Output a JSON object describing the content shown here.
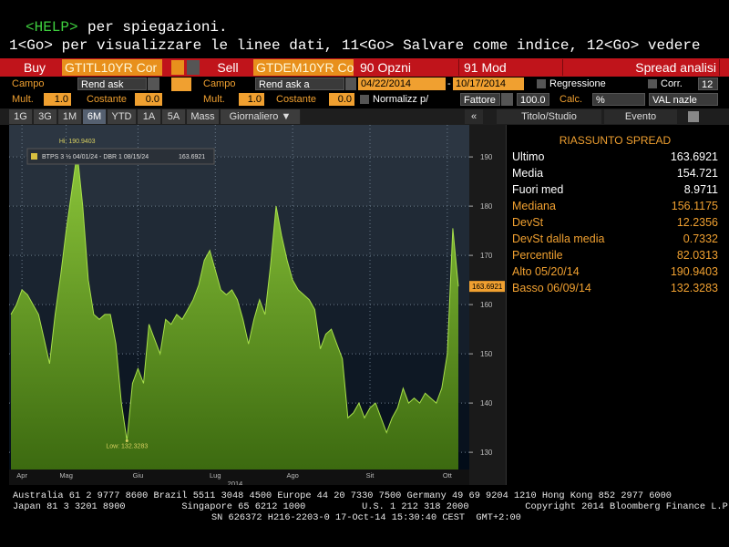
{
  "help_line": {
    "key": "<HELP>",
    "text": "per spiegazioni."
  },
  "go_line": "1<Go> per visualizzare le linee dati, 11<Go> Salvare come indice, 12<Go> vedere",
  "toolbar": {
    "buy": "Buy",
    "buy_ticker": "GTITL10YR Cor",
    "sell": "Sell",
    "sell_ticker": "GTDEM10YR Co",
    "options": "90 Opzni",
    "mod": "91 Mod",
    "spread": "Spread analisi"
  },
  "row1": {
    "campo1": "Campo",
    "rend1": "Rend ask",
    "campo2": "Campo",
    "rend2": "Rend ask a",
    "start": "04/22/2014",
    "dash": "-",
    "end": "10/17/2014",
    "regr": "Regressione",
    "corr": "Corr.",
    "corr_val": "12"
  },
  "row2": {
    "mult1": "Mult.",
    "mult1_val": "1.0",
    "cost1": "Costante",
    "cost1_val": "0.0",
    "mult2": "Mult.",
    "mult2_val": "1.0",
    "cost2": "Costante",
    "cost2_val": "0.0",
    "norm": "Normalizz p/",
    "fattore": "Fattore",
    "fattore_val": "100.0",
    "calc": "Calc.",
    "calc_val": "%",
    "val": "VAL nazle"
  },
  "tabs": [
    "1G",
    "3G",
    "1M",
    "6M",
    "YTD",
    "1A",
    "5A",
    "Mass",
    "Giornaliero ▼"
  ],
  "right_tabs": [
    "«",
    "Titolo/Studio",
    "Evento"
  ],
  "chart_data": {
    "type": "area",
    "categories": [
      null,
      null,
      "Apr",
      null,
      null,
      null,
      null,
      null,
      null,
      null,
      "Mag",
      null,
      null,
      null,
      null,
      null,
      null,
      null,
      null,
      null,
      null,
      null,
      null,
      "Giu",
      null,
      null,
      null,
      null,
      null,
      null,
      null,
      null,
      null,
      null,
      null,
      null,
      null,
      "Lug",
      null,
      null,
      null,
      null,
      null,
      null,
      null,
      null,
      null,
      null,
      null,
      null,
      null,
      "Ago",
      null,
      null,
      null,
      null,
      null,
      null,
      null,
      null,
      null,
      null,
      null,
      null,
      null,
      "Sit",
      null,
      null,
      null,
      null,
      null,
      null,
      null,
      null,
      null,
      null,
      null,
      null,
      null,
      "Ott",
      null,
      null
    ],
    "series": [
      {
        "name": "BTPS 3 ½ 04/01/24 - DBR 1 08/15/24",
        "color": "#6f9e22",
        "values": [
          158,
          160,
          163,
          162,
          160,
          158,
          153,
          148,
          158,
          166,
          175,
          183,
          190.9403,
          180,
          165,
          158,
          157,
          158,
          158,
          152,
          140,
          132.3283,
          144,
          147,
          144,
          156,
          153,
          150,
          157,
          156,
          158,
          157,
          159,
          161,
          164,
          169,
          171,
          167,
          163,
          162,
          163,
          161,
          157,
          152,
          157,
          161,
          158,
          168,
          180,
          174,
          169,
          165,
          163,
          162,
          161,
          159,
          151,
          154,
          155,
          152,
          149,
          137,
          138,
          140,
          137,
          139,
          140,
          137,
          134,
          137,
          139,
          143,
          140,
          141,
          140,
          142,
          141,
          140,
          143,
          150,
          175.5,
          163.6921
        ]
      }
    ],
    "xlabel": "2014",
    "ylim": [
      126.5,
      196.5
    ],
    "yticks": [
      130,
      140,
      150,
      160,
      170,
      180,
      190
    ],
    "grid": true,
    "annotations": {
      "high": "Hi: 190.9403",
      "low": "Low: 132.3283"
    }
  },
  "summary": {
    "title": "RIASSUNTO SPREAD",
    "rows": [
      [
        "Ultimo",
        "163.6921"
      ],
      [
        "Media",
        "154.721"
      ],
      [
        "Fuori med",
        "8.9711"
      ],
      [
        "Mediana",
        "156.1175"
      ],
      [
        "DevSt",
        "12.2356"
      ],
      [
        "DevSt dalla media",
        "0.7332"
      ],
      [
        "Percentile",
        "82.0313"
      ],
      [
        "Alto 05/20/14",
        "190.9403"
      ],
      [
        "Basso 06/09/14",
        "132.3283"
      ]
    ]
  },
  "footer": [
    "Australia 61 2 9777 8600 Brazil 5511 3048 4500 Europe 44 20 7330 7500 Germany 49 69 9204 1210 Hong Kong 852 2977 6000",
    "Japan 81 3 3201 8900          Singapore 65 6212 1000          U.S. 1 212 318 2000          Copyright 2014 Bloomberg Finance L.P.",
    "SN 626372 H216-2203-0 17-Oct-14 15:30:40 CEST  GMT+2:00"
  ]
}
